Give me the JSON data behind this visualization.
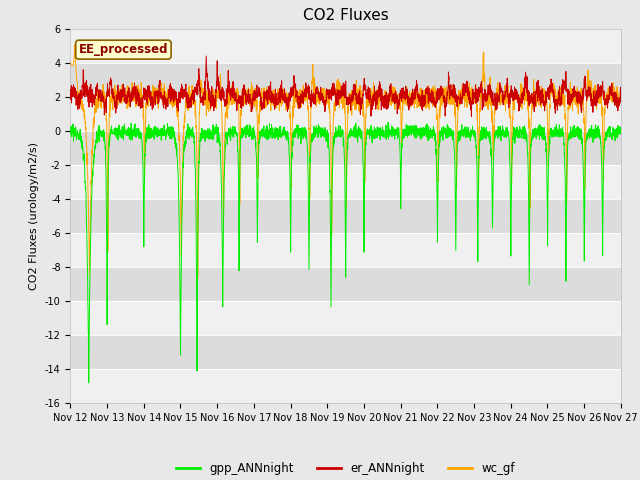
{
  "title": "CO2 Fluxes",
  "ylabel": "CO2 Fluxes (urology/m2/s)",
  "ylim": [
    -16,
    6
  ],
  "yticks": [
    -16,
    -14,
    -12,
    -10,
    -8,
    -6,
    -4,
    -2,
    0,
    2,
    4,
    6
  ],
  "xtick_labels": [
    "Nov 12",
    "Nov 13",
    "Nov 14",
    "Nov 15",
    "Nov 16",
    "Nov 17",
    "Nov 18",
    "Nov 19",
    "Nov 20",
    "Nov 21",
    "Nov 22",
    "Nov 23",
    "Nov 24",
    "Nov 25",
    "Nov 26",
    "Nov 27"
  ],
  "annotation_text": "EE_processed",
  "annotation_color": "#8B0000",
  "annotation_bg": "#FFFFCC",
  "annotation_border": "#8B6000",
  "colors": {
    "gpp_ANNnight": "#00EE00",
    "er_ANNnight": "#CC0000",
    "wc_gf": "#FFA500"
  },
  "legend_labels": [
    "gpp_ANNnight",
    "er_ANNnight",
    "wc_gf"
  ],
  "bg_color": "#E8E8E8",
  "plot_bg": "#F0F0F0",
  "band_color": "#DCDCDC",
  "title_fontsize": 11,
  "label_fontsize": 8,
  "tick_fontsize": 7
}
